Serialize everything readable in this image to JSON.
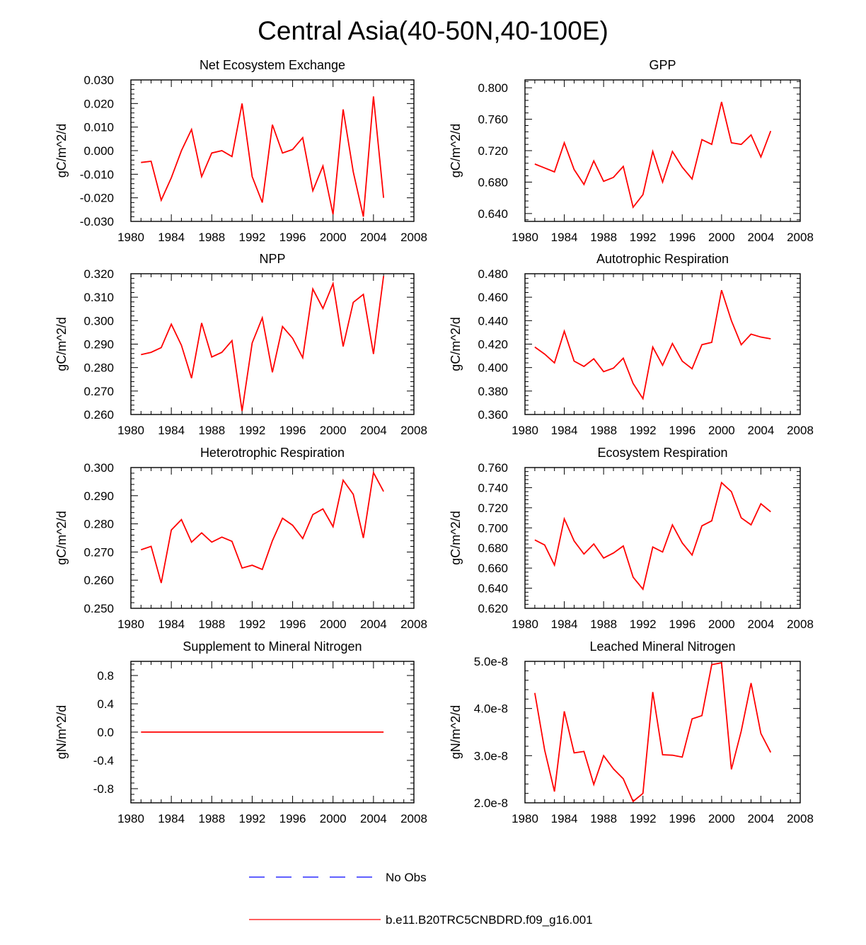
{
  "figure_title": "Central Asia(40-50N,40-100E)",
  "colors": {
    "model": "#ff0000",
    "obs": "#0000ff",
    "axes": "#000000"
  },
  "legend": {
    "obs_label": "No Obs",
    "model_label": "b.e11.B20TRC5CNBDRD.f09_g16.001"
  },
  "chart_data": [
    {
      "type": "line",
      "title": "Net Ecosystem Exchange",
      "ylabel": "gC/m^2/d",
      "xlim": [
        1980,
        2008
      ],
      "ylim": [
        -0.03,
        0.03
      ],
      "xticks": [
        1980,
        1984,
        1988,
        1992,
        1996,
        2000,
        2004,
        2008
      ],
      "xtick_labels": [
        "1980",
        "1984",
        "1988",
        "1992",
        "1996",
        "2000",
        "2004",
        "2008"
      ],
      "yticks": [
        -0.03,
        -0.02,
        -0.01,
        0.0,
        0.01,
        0.02,
        0.03
      ],
      "ytick_labels": [
        "-0.030",
        "-0.020",
        "-0.010",
        "0.000",
        "0.010",
        "0.020",
        "0.030"
      ],
      "series": [
        {
          "name": "b.e11.B20TRC5CNBDRD.f09_g16.001",
          "x": [
            1981,
            1982,
            1983,
            1984,
            1985,
            1986,
            1987,
            1988,
            1989,
            1990,
            1991,
            1992,
            1993,
            1994,
            1995,
            1996,
            1997,
            1998,
            1999,
            2000,
            2001,
            2002,
            2003,
            2004,
            2005
          ],
          "y": [
            -0.005,
            -0.0045,
            -0.021,
            -0.0115,
            0.0,
            0.009,
            -0.011,
            -0.001,
            0.0,
            -0.0025,
            0.02,
            -0.011,
            -0.022,
            0.011,
            -0.001,
            0.0005,
            0.0055,
            -0.017,
            -0.0065,
            -0.027,
            0.0175,
            -0.009,
            -0.028,
            0.023,
            -0.02
          ]
        }
      ]
    },
    {
      "type": "line",
      "title": "GPP",
      "ylabel": "gC/m^2/d",
      "xlim": [
        1980,
        2008
      ],
      "ylim": [
        0.63,
        0.81
      ],
      "xticks": [
        1980,
        1984,
        1988,
        1992,
        1996,
        2000,
        2004,
        2008
      ],
      "xtick_labels": [
        "1980",
        "1984",
        "1988",
        "1992",
        "1996",
        "2000",
        "2004",
        "2008"
      ],
      "yticks": [
        0.64,
        0.68,
        0.72,
        0.76,
        0.8
      ],
      "ytick_labels": [
        "0.640",
        "0.680",
        "0.720",
        "0.760",
        "0.800"
      ],
      "series": [
        {
          "name": "b.e11.B20TRC5CNBDRD.f09_g16.001",
          "x": [
            1981,
            1982,
            1983,
            1984,
            1985,
            1986,
            1987,
            1988,
            1989,
            1990,
            1991,
            1992,
            1993,
            1994,
            1995,
            1996,
            1997,
            1998,
            1999,
            2000,
            2001,
            2002,
            2003,
            2004,
            2005
          ],
          "y": [
            0.703,
            0.698,
            0.693,
            0.73,
            0.696,
            0.677,
            0.707,
            0.681,
            0.686,
            0.7,
            0.648,
            0.664,
            0.719,
            0.68,
            0.719,
            0.699,
            0.684,
            0.734,
            0.728,
            0.782,
            0.73,
            0.728,
            0.74,
            0.712,
            0.745
          ]
        }
      ]
    },
    {
      "type": "line",
      "title": "NPP",
      "ylabel": "gC/m^2/d",
      "xlim": [
        1980,
        2008
      ],
      "ylim": [
        0.26,
        0.32
      ],
      "xticks": [
        1980,
        1984,
        1988,
        1992,
        1996,
        2000,
        2004,
        2008
      ],
      "xtick_labels": [
        "1980",
        "1984",
        "1988",
        "1992",
        "1996",
        "2000",
        "2004",
        "2008"
      ],
      "yticks": [
        0.26,
        0.27,
        0.28,
        0.29,
        0.3,
        0.31,
        0.32
      ],
      "ytick_labels": [
        "0.260",
        "0.270",
        "0.280",
        "0.290",
        "0.300",
        "0.310",
        "0.320"
      ],
      "series": [
        {
          "name": "b.e11.B20TRC5CNBDRD.f09_g16.001",
          "x": [
            1981,
            1982,
            1983,
            1984,
            1985,
            1986,
            1987,
            1988,
            1989,
            1990,
            1991,
            1992,
            1993,
            1994,
            1995,
            1996,
            1997,
            1998,
            1999,
            2000,
            2001,
            2002,
            2003,
            2004,
            2005
          ],
          "y": [
            0.2855,
            0.2865,
            0.2885,
            0.2985,
            0.2895,
            0.2755,
            0.299,
            0.2845,
            0.2865,
            0.2915,
            0.2615,
            0.2905,
            0.3012,
            0.278,
            0.2975,
            0.2925,
            0.2842,
            0.3135,
            0.3052,
            0.3158,
            0.289,
            0.3078,
            0.3112,
            0.2858,
            0.319
          ]
        }
      ]
    },
    {
      "type": "line",
      "title": "Autotrophic Respiration",
      "ylabel": "gC/m^2/d",
      "xlim": [
        1980,
        2008
      ],
      "ylim": [
        0.36,
        0.48
      ],
      "xticks": [
        1980,
        1984,
        1988,
        1992,
        1996,
        2000,
        2004,
        2008
      ],
      "xtick_labels": [
        "1980",
        "1984",
        "1988",
        "1992",
        "1996",
        "2000",
        "2004",
        "2008"
      ],
      "yticks": [
        0.36,
        0.38,
        0.4,
        0.42,
        0.44,
        0.46,
        0.48
      ],
      "ytick_labels": [
        "0.360",
        "0.380",
        "0.400",
        "0.420",
        "0.440",
        "0.460",
        "0.480"
      ],
      "series": [
        {
          "name": "b.e11.B20TRC5CNBDRD.f09_g16.001",
          "x": [
            1981,
            1982,
            1983,
            1984,
            1985,
            1986,
            1987,
            1988,
            1989,
            1990,
            1991,
            1992,
            1993,
            1994,
            1995,
            1996,
            1997,
            1998,
            1999,
            2000,
            2001,
            2002,
            2003,
            2004,
            2005
          ],
          "y": [
            0.4175,
            0.4115,
            0.404,
            0.431,
            0.4055,
            0.401,
            0.4075,
            0.3965,
            0.3995,
            0.408,
            0.3865,
            0.3735,
            0.4175,
            0.402,
            0.4205,
            0.4055,
            0.399,
            0.4195,
            0.4215,
            0.466,
            0.44,
            0.4195,
            0.4285,
            0.426,
            0.4245
          ]
        }
      ]
    },
    {
      "type": "line",
      "title": "Heterotrophic Respiration",
      "ylabel": "gC/m^2/d",
      "xlim": [
        1980,
        2008
      ],
      "ylim": [
        0.25,
        0.3
      ],
      "xticks": [
        1980,
        1984,
        1988,
        1992,
        1996,
        2000,
        2004,
        2008
      ],
      "xtick_labels": [
        "1980",
        "1984",
        "1988",
        "1992",
        "1996",
        "2000",
        "2004",
        "2008"
      ],
      "yticks": [
        0.25,
        0.26,
        0.27,
        0.28,
        0.29,
        0.3
      ],
      "ytick_labels": [
        "0.250",
        "0.260",
        "0.270",
        "0.280",
        "0.290",
        "0.300"
      ],
      "series": [
        {
          "name": "b.e11.B20TRC5CNBDRD.f09_g16.001",
          "x": [
            1981,
            1982,
            1983,
            1984,
            1985,
            1986,
            1987,
            1988,
            1989,
            1990,
            1991,
            1992,
            1993,
            1994,
            1995,
            1996,
            1997,
            1998,
            1999,
            2000,
            2001,
            2002,
            2003,
            2004,
            2005
          ],
          "y": [
            0.2708,
            0.272,
            0.259,
            0.2778,
            0.2815,
            0.2735,
            0.2768,
            0.2735,
            0.2753,
            0.2738,
            0.2643,
            0.2653,
            0.2638,
            0.274,
            0.282,
            0.2795,
            0.2748,
            0.2833,
            0.2853,
            0.279,
            0.2955,
            0.2905,
            0.275,
            0.2982,
            0.2915
          ]
        }
      ]
    },
    {
      "type": "line",
      "title": "Ecosystem Respiration",
      "ylabel": "gC/m^2/d",
      "xlim": [
        1980,
        2008
      ],
      "ylim": [
        0.62,
        0.76
      ],
      "xticks": [
        1980,
        1984,
        1988,
        1992,
        1996,
        2000,
        2004,
        2008
      ],
      "xtick_labels": [
        "1980",
        "1984",
        "1988",
        "1992",
        "1996",
        "2000",
        "2004",
        "2008"
      ],
      "yticks": [
        0.62,
        0.64,
        0.66,
        0.68,
        0.7,
        0.72,
        0.74,
        0.76
      ],
      "ytick_labels": [
        "0.620",
        "0.640",
        "0.660",
        "0.680",
        "0.700",
        "0.720",
        "0.740",
        "0.760"
      ],
      "series": [
        {
          "name": "b.e11.B20TRC5CNBDRD.f09_g16.001",
          "x": [
            1981,
            1982,
            1983,
            1984,
            1985,
            1986,
            1987,
            1988,
            1989,
            1990,
            1991,
            1992,
            1993,
            1994,
            1995,
            1996,
            1997,
            1998,
            1999,
            2000,
            2001,
            2002,
            2003,
            2004,
            2005
          ],
          "y": [
            0.688,
            0.683,
            0.663,
            0.709,
            0.687,
            0.674,
            0.684,
            0.67,
            0.675,
            0.682,
            0.651,
            0.639,
            0.681,
            0.676,
            0.703,
            0.685,
            0.673,
            0.702,
            0.707,
            0.745,
            0.736,
            0.71,
            0.703,
            0.724,
            0.716
          ]
        }
      ]
    },
    {
      "type": "line",
      "title": "Supplement to Mineral Nitrogen",
      "ylabel": "gN/m^2/d",
      "xlim": [
        1980,
        2008
      ],
      "ylim": [
        -1.0,
        1.0
      ],
      "xticks": [
        1980,
        1984,
        1988,
        1992,
        1996,
        2000,
        2004,
        2008
      ],
      "xtick_labels": [
        "1980",
        "1984",
        "1988",
        "1992",
        "1996",
        "2000",
        "2004",
        "2008"
      ],
      "yticks": [
        -0.8,
        -0.4,
        0.0,
        0.4,
        0.8
      ],
      "ytick_labels": [
        "-0.8",
        "-0.4",
        "0.0",
        "0.4",
        "0.8"
      ],
      "series": [
        {
          "name": "b.e11.B20TRC5CNBDRD.f09_g16.001",
          "x": [
            1981,
            1982,
            1983,
            1984,
            1985,
            1986,
            1987,
            1988,
            1989,
            1990,
            1991,
            1992,
            1993,
            1994,
            1995,
            1996,
            1997,
            1998,
            1999,
            2000,
            2001,
            2002,
            2003,
            2004,
            2005
          ],
          "y": [
            0,
            0,
            0,
            0,
            0,
            0,
            0,
            0,
            0,
            0,
            0,
            0,
            0,
            0,
            0,
            0,
            0,
            0,
            0,
            0,
            0,
            0,
            0,
            0,
            0
          ]
        }
      ]
    },
    {
      "type": "line",
      "title": "Leached Mineral Nitrogen",
      "ylabel": "gN/m^2/d",
      "xlim": [
        1980,
        2008
      ],
      "ylim": [
        2e-08,
        5e-08
      ],
      "xticks": [
        1980,
        1984,
        1988,
        1992,
        1996,
        2000,
        2004,
        2008
      ],
      "xtick_labels": [
        "1980",
        "1984",
        "1988",
        "1992",
        "1996",
        "2000",
        "2004",
        "2008"
      ],
      "yticks": [
        2e-08,
        3e-08,
        4e-08,
        5e-08
      ],
      "ytick_labels": [
        "2.0e-8",
        "3.0e-8",
        "4.0e-8",
        "5.0e-8"
      ],
      "series": [
        {
          "name": "b.e11.B20TRC5CNBDRD.f09_g16.001",
          "x": [
            1981,
            1982,
            1983,
            1984,
            1985,
            1986,
            1987,
            1988,
            1989,
            1990,
            1991,
            1992,
            1993,
            1994,
            1995,
            1996,
            1997,
            1998,
            1999,
            2000,
            2001,
            2002,
            2003,
            2004,
            2005
          ],
          "y": [
            4.33e-08,
            3.12e-08,
            2.24e-08,
            3.94e-08,
            3.06e-08,
            3.09e-08,
            2.39e-08,
            3e-08,
            2.72e-08,
            2.51e-08,
            2.03e-08,
            2.2e-08,
            4.35e-08,
            3.02e-08,
            3.01e-08,
            2.97e-08,
            3.78e-08,
            3.85e-08,
            4.93e-08,
            4.97e-08,
            2.71e-08,
            3.52e-08,
            4.54e-08,
            3.47e-08,
            3.07e-08
          ]
        }
      ]
    }
  ]
}
